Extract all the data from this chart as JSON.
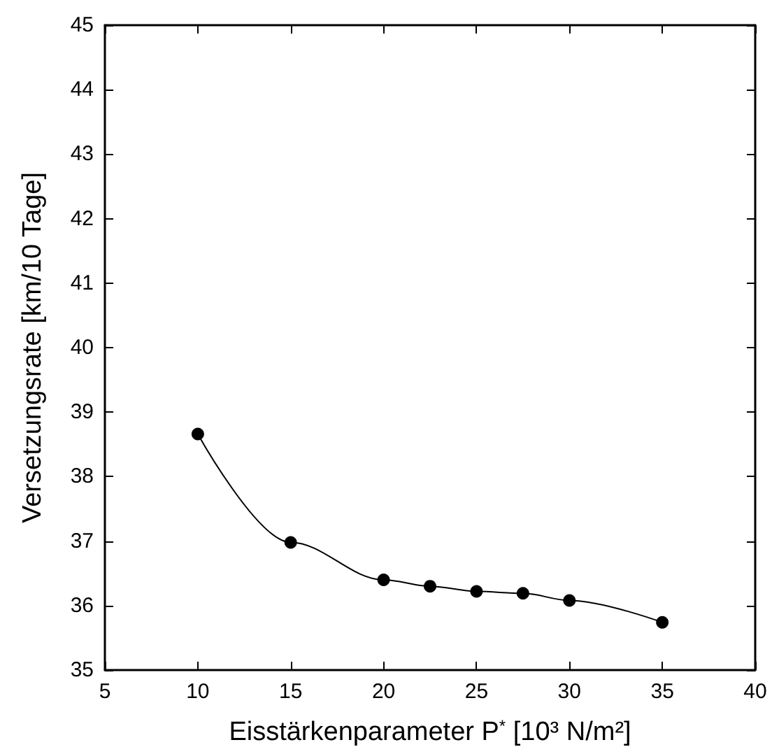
{
  "chart_data": {
    "type": "line",
    "xlabel": "Eisstärkenparameter P$^{*}$ [10³ N/m²]",
    "ylabel": "Versetzungsrate [km/10 Tage]",
    "x": [
      10,
      15,
      20,
      22.5,
      25,
      27.5,
      30,
      35
    ],
    "series": [
      {
        "color": "#000000",
        "values": [
          38.66,
          36.98,
          36.4,
          36.3,
          36.22,
          36.19,
          36.08,
          35.74
        ]
      }
    ],
    "xlim": [
      5,
      40
    ],
    "xticks": [
      5,
      10,
      15,
      20,
      25,
      30,
      35,
      40
    ],
    "ylim": [
      35,
      45
    ],
    "yticks": [
      35,
      36,
      37,
      38,
      39,
      40,
      41,
      42,
      43,
      44,
      45
    ],
    "grid": false,
    "marker": "circle",
    "line_style": "solid"
  }
}
